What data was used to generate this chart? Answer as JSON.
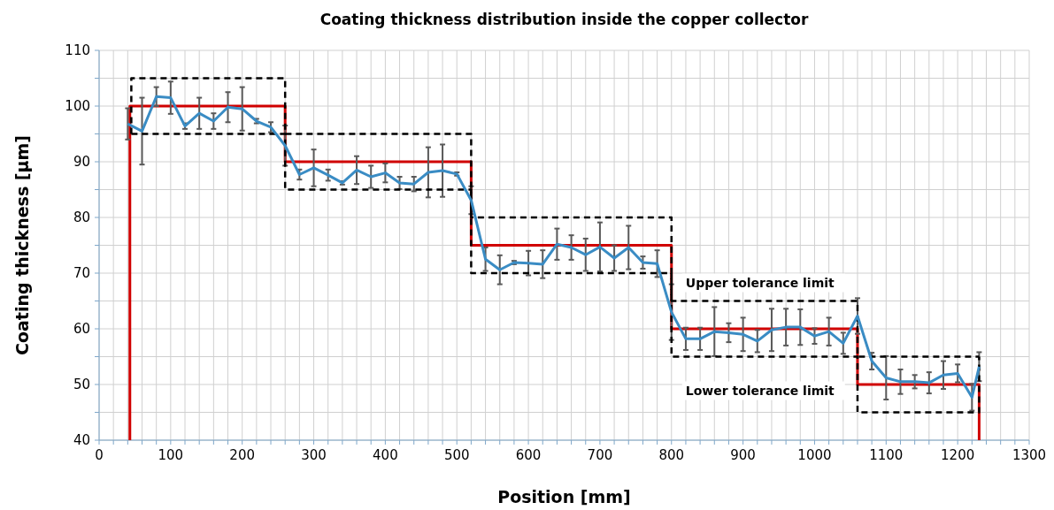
{
  "chart_data": {
    "type": "line",
    "title": "Coating thickness distribution inside the copper collector",
    "xlabel": "Position [mm]",
    "ylabel": "Coating thickness [µm]",
    "xlim": [
      0,
      1300
    ],
    "ylim": [
      40,
      110
    ],
    "xticks": [
      0,
      {
        "value": 20,
        "label": null
      },
      {
        "value": 40,
        "label": null
      },
      {
        "value": 60,
        "label": null
      },
      {
        "value": 80,
        "label": null
      },
      100,
      {
        "value": 120,
        "label": null
      },
      {
        "value": 140,
        "label": null
      },
      {
        "value": 160,
        "label": null
      },
      {
        "value": 180,
        "label": null
      },
      200,
      {
        "value": 220,
        "label": null
      },
      {
        "value": 240,
        "label": null
      },
      {
        "value": 260,
        "label": null
      },
      {
        "value": 280,
        "label": null
      },
      300,
      {
        "value": 320,
        "label": null
      },
      {
        "value": 340,
        "label": null
      },
      {
        "value": 360,
        "label": null
      },
      {
        "value": 380,
        "label": null
      },
      400,
      {
        "value": 420,
        "label": null
      },
      {
        "value": 440,
        "label": null
      },
      {
        "value": 460,
        "label": null
      },
      {
        "value": 480,
        "label": null
      },
      500,
      {
        "value": 520,
        "label": null
      },
      {
        "value": 540,
        "label": null
      },
      {
        "value": 560,
        "label": null
      },
      {
        "value": 580,
        "label": null
      },
      600,
      {
        "value": 620,
        "label": null
      },
      {
        "value": 640,
        "label": null
      },
      {
        "value": 660,
        "label": null
      },
      {
        "value": 680,
        "label": null
      },
      700,
      {
        "value": 720,
        "label": null
      },
      {
        "value": 740,
        "label": null
      },
      {
        "value": 760,
        "label": null
      },
      {
        "value": 780,
        "label": null
      },
      800,
      {
        "value": 820,
        "label": null
      },
      {
        "value": 840,
        "label": null
      },
      {
        "value": 860,
        "label": null
      },
      {
        "value": 880,
        "label": null
      },
      900,
      {
        "value": 920,
        "label": null
      },
      {
        "value": 940,
        "label": null
      },
      {
        "value": 960,
        "label": null
      },
      {
        "value": 980,
        "label": null
      },
      1000,
      {
        "value": 1020,
        "label": null
      },
      {
        "value": 1040,
        "label": null
      },
      {
        "value": 1060,
        "label": null
      },
      {
        "value": 1080,
        "label": null
      },
      1100,
      {
        "value": 1120,
        "label": null
      },
      {
        "value": 1140,
        "label": null
      },
      {
        "value": 1160,
        "label": null
      },
      {
        "value": 1180,
        "label": null
      },
      1200,
      {
        "value": 1220,
        "label": null
      },
      {
        "value": 1240,
        "label": null
      },
      {
        "value": 1260,
        "label": null
      },
      {
        "value": 1280,
        "label": null
      },
      1300
    ],
    "yticks": [
      40,
      {
        "value": 45,
        "label": null
      },
      50,
      {
        "value": 55,
        "label": null
      },
      60,
      {
        "value": 65,
        "label": null
      },
      70,
      {
        "value": 75,
        "label": null
      },
      80,
      {
        "value": 85,
        "label": null
      },
      90,
      {
        "value": 95,
        "label": null
      },
      100,
      {
        "value": 105,
        "label": null
      },
      110
    ],
    "grid": true,
    "marker": "none",
    "series": [
      {
        "color": "#3a8cc4",
        "line_style": "solid",
        "x": [
          40,
          60,
          80,
          100,
          120,
          140,
          160,
          180,
          200,
          220,
          240,
          260,
          280,
          300,
          320,
          340,
          360,
          380,
          400,
          420,
          440,
          460,
          480,
          500,
          520,
          540,
          560,
          580,
          600,
          620,
          640,
          660,
          680,
          700,
          720,
          740,
          760,
          780,
          800,
          820,
          840,
          860,
          880,
          900,
          920,
          940,
          960,
          980,
          1000,
          1020,
          1040,
          1060,
          1080,
          1100,
          1120,
          1140,
          1160,
          1180,
          1200,
          1220,
          1230
        ],
        "values": [
          96.8,
          95.5,
          101.7,
          101.5,
          96.4,
          98.7,
          97.3,
          99.8,
          99.5,
          97.3,
          96.2,
          92.9,
          87.7,
          88.9,
          87.6,
          86.2,
          88.5,
          87.3,
          88,
          86.2,
          86,
          88.1,
          88.4,
          87.8,
          83.1,
          72.5,
          70.6,
          71.9,
          71.8,
          71.6,
          75.2,
          74.6,
          73.3,
          74.7,
          72.7,
          74.6,
          71.9,
          71.7,
          63,
          58.2,
          58.2,
          59.5,
          59.3,
          59,
          57.8,
          59.8,
          60.3,
          60.3,
          58.7,
          59.5,
          57.4,
          62.3,
          54.2,
          51.2,
          50.5,
          50.5,
          50.3,
          51.7,
          52,
          47.7,
          53.2
        ],
        "errors": [
          2.8,
          6,
          1.7,
          2.9,
          0.5,
          2.8,
          1.4,
          2.7,
          3.9,
          0.4,
          0.9,
          3.6,
          0.9,
          3.3,
          1,
          0.3,
          2.5,
          2,
          1.7,
          1.1,
          1.3,
          4.5,
          4.7,
          0.3,
          2.5,
          2.1,
          2.6,
          0.3,
          2.2,
          2.5,
          2.8,
          2.2,
          2.9,
          4.4,
          2.3,
          3.9,
          1.1,
          2.4,
          5,
          2,
          2,
          4.4,
          1.7,
          3,
          2,
          3.8,
          3.3,
          3.2,
          1.4,
          2.5,
          1.9,
          3.2,
          1.5,
          3.9,
          2.2,
          1.2,
          1.9,
          2.5,
          1.6,
          2.4,
          2.6
        ]
      },
      {
        "color": "#d00000",
        "line_style": "solid",
        "x": [
          43,
          43,
          260,
          260,
          520,
          520,
          800,
          800,
          1060,
          1060,
          1230,
          1230
        ],
        "values": [
          40,
          100,
          100,
          90,
          90,
          75,
          75,
          60,
          60,
          50,
          50,
          40
        ]
      },
      {
        "type": "step",
        "name": "Upper tolerance limit",
        "color": "#000000",
        "line_style": "dashed",
        "x": [
          45,
          45,
          260,
          520,
          800,
          1060,
          1230
        ],
        "values": [
          95,
          105,
          95,
          80,
          65,
          55,
          55
        ]
      },
      {
        "type": "step",
        "name": "Lower tolerance limit",
        "color": "#000000",
        "line_style": "dashed",
        "x": [
          45,
          260,
          520,
          800,
          1060,
          1230,
          1230
        ],
        "values": [
          95,
          85,
          70,
          55,
          45,
          45,
          55
        ]
      }
    ]
  }
}
